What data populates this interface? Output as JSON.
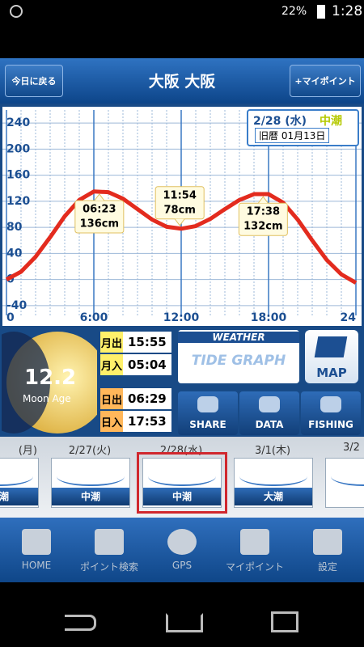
{
  "status_bar": {
    "battery": "22%",
    "time": "1:28"
  },
  "header": {
    "back_button": "今日に戻る",
    "title": "大阪 大阪",
    "mypoint_button": "+マイポイント"
  },
  "chart_data": {
    "type": "line",
    "date": "2/28 (水)",
    "tide_name": "中潮",
    "lunar_date": "旧暦 01月13日",
    "x": [
      0,
      1,
      2,
      3,
      4,
      5,
      6,
      7,
      8,
      9,
      10,
      11,
      12,
      13,
      14,
      15,
      16,
      17,
      18,
      19,
      20,
      21,
      22,
      23,
      24
    ],
    "values": [
      0,
      12,
      35,
      65,
      97,
      122,
      135,
      134,
      124,
      108,
      92,
      81,
      78,
      82,
      93,
      108,
      122,
      131,
      131,
      118,
      92,
      60,
      30,
      8,
      -5
    ],
    "color": "#e32b1e",
    "xlim": [
      0,
      24
    ],
    "ylim": [
      -50,
      260
    ],
    "xticks": [
      0,
      {
        "value": 6,
        "label": "6:00"
      },
      {
        "value": 12,
        "label": "12:00"
      },
      {
        "value": 18,
        "label": "18:00"
      },
      24
    ],
    "yticks": [
      -40,
      0,
      40,
      80,
      120,
      160,
      200,
      240
    ],
    "grid": true,
    "annotations": [
      {
        "x": 6.38,
        "value": 136,
        "time": "06:23",
        "label": "136cm"
      },
      {
        "x": 11.9,
        "value": 78,
        "time": "11:54",
        "label": "78cm"
      },
      {
        "x": 17.63,
        "value": 132,
        "time": "17:38",
        "label": "132cm"
      }
    ]
  },
  "moon": {
    "age": "12.2",
    "label": "Moon Age"
  },
  "sun_moon_times": [
    {
      "label": "月出",
      "time": "15:55"
    },
    {
      "label": "月入",
      "time": "05:04"
    },
    {
      "label": "日出",
      "time": "06:29"
    },
    {
      "label": "日入",
      "time": "17:53"
    }
  ],
  "weather_banner": {
    "title": "WEATHER",
    "subtitle": "TIDE GRAPH"
  },
  "map_button": "MAP",
  "actions": [
    "SHARE",
    "DATA",
    "FISHING"
  ],
  "date_strip": [
    {
      "date": "(月)",
      "tide": "潮"
    },
    {
      "date": "2/27(火)",
      "tide": "中潮"
    },
    {
      "date": "2/28(水)",
      "tide": "中潮",
      "selected": true
    },
    {
      "date": "3/1(木)",
      "tide": "大潮"
    },
    {
      "date": "3/2"
    }
  ],
  "tab_bar": [
    "HOME",
    "ポイント検索",
    "GPS",
    "マイポイント",
    "設定"
  ]
}
